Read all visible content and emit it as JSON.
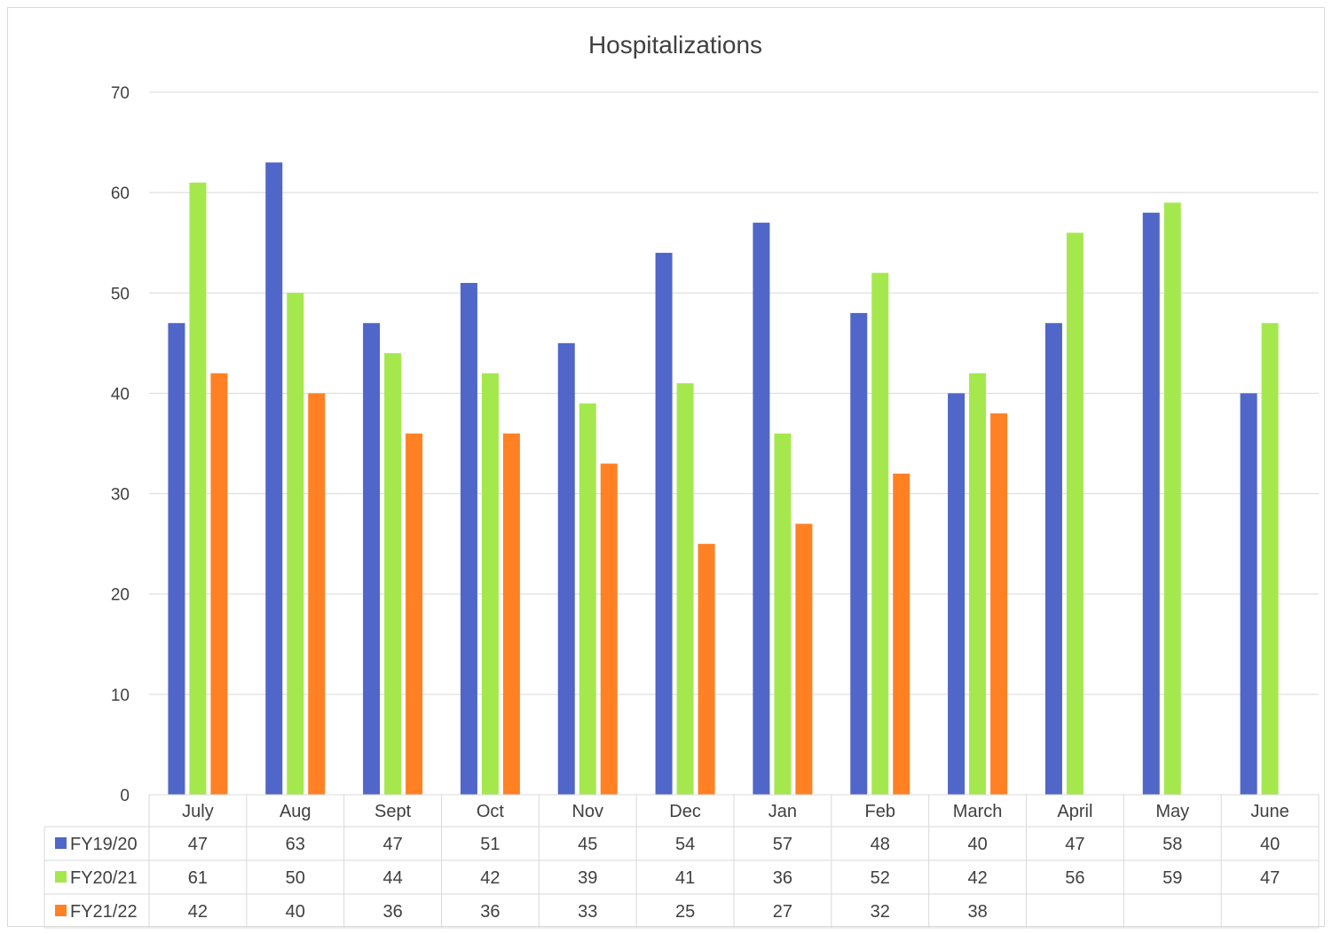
{
  "chart_data": {
    "type": "bar",
    "title": "Hospitalizations",
    "categories": [
      "July",
      "Aug",
      "Sept",
      "Oct",
      "Nov",
      "Dec",
      "Jan",
      "Feb",
      "March",
      "April",
      "May",
      "June"
    ],
    "series": [
      {
        "name": "FY19/20",
        "color": "#5066c8",
        "values": [
          47,
          63,
          47,
          51,
          45,
          54,
          57,
          48,
          40,
          47,
          58,
          40
        ]
      },
      {
        "name": "FY20/21",
        "color": "#a5e84e",
        "values": [
          61,
          50,
          44,
          42,
          39,
          41,
          36,
          52,
          42,
          56,
          59,
          47
        ]
      },
      {
        "name": "FY21/22",
        "color": "#ff8124",
        "values": [
          42,
          40,
          36,
          36,
          33,
          25,
          27,
          32,
          38,
          null,
          null,
          null
        ]
      }
    ],
    "yticks": [
      0,
      10,
      20,
      30,
      40,
      50,
      60,
      70
    ],
    "ylim": [
      0,
      70
    ],
    "grid": true,
    "legend": "data-table"
  }
}
